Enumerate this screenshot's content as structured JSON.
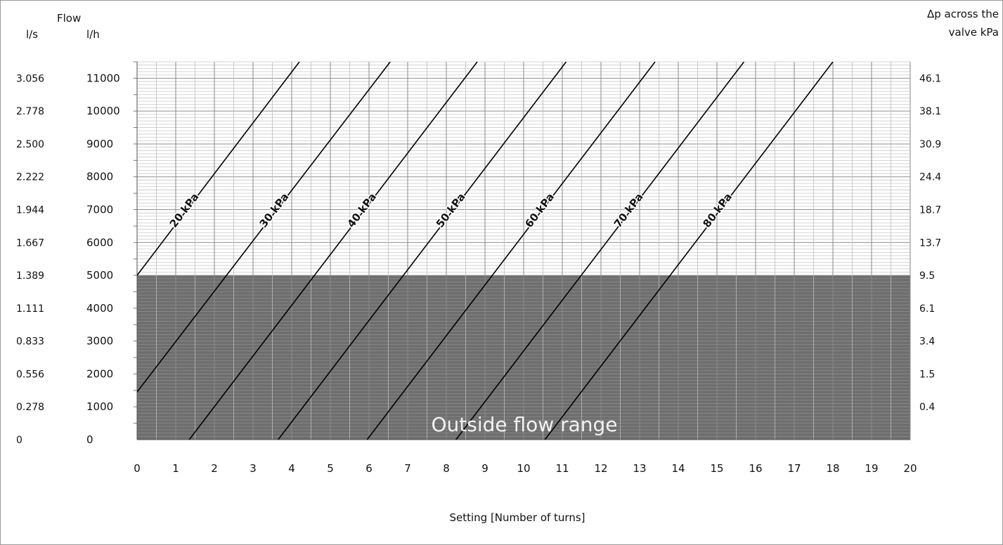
{
  "chart_data": {
    "type": "line",
    "title": "",
    "header_flow": "Flow",
    "header_ls": "l/s",
    "header_lh": "l/h",
    "header_right": [
      "Δp across the",
      "valve kPa"
    ],
    "xlabel": "Setting [Number of turns]",
    "xlim": [
      0,
      20
    ],
    "ylim": [
      0,
      11500
    ],
    "x_ticks": [
      "0",
      "1",
      "2",
      "3",
      "4",
      "5",
      "6",
      "7",
      "8",
      "9",
      "10",
      "11",
      "12",
      "13",
      "14",
      "15",
      "16",
      "17",
      "18",
      "19",
      "20"
    ],
    "y_ticks_lh": [
      "0",
      "1000",
      "2000",
      "3000",
      "4000",
      "5000",
      "6000",
      "7000",
      "8000",
      "9000",
      "10000",
      "11000"
    ],
    "y_ticks_ls": [
      "0",
      "0.278",
      "0.556",
      "0.833",
      "1.111",
      "1.389",
      "1.667",
      "1.944",
      "2.222",
      "2.500",
      "2.778",
      "3.056"
    ],
    "y_ticks_kpa": [
      "",
      "0.4",
      "1.5",
      "3.4",
      "6.1",
      "9.5",
      "13.7",
      "18.7",
      "24.4",
      "30.9",
      "38.1",
      "46.1"
    ],
    "shaded_region": {
      "label": "Outside flow range",
      "y_max": 5000
    },
    "series": [
      {
        "name": "20 kPa",
        "points": [
          [
            0,
            5000
          ],
          [
            4.2,
            11500
          ]
        ]
      },
      {
        "name": "30 kPa",
        "points": [
          [
            0,
            1450
          ],
          [
            6.55,
            11500
          ]
        ]
      },
      {
        "name": "40 kPa",
        "points": [
          [
            1.35,
            0
          ],
          [
            8.8,
            11500
          ]
        ]
      },
      {
        "name": "50 kPa",
        "points": [
          [
            3.65,
            0
          ],
          [
            11.1,
            11500
          ]
        ]
      },
      {
        "name": "60 kPa",
        "points": [
          [
            5.95,
            0
          ],
          [
            13.4,
            11500
          ]
        ]
      },
      {
        "name": "70 kPa",
        "points": [
          [
            8.25,
            0
          ],
          [
            15.7,
            11500
          ]
        ]
      },
      {
        "name": "80 kPa",
        "points": [
          [
            10.55,
            0
          ],
          [
            18.0,
            11500
          ]
        ]
      }
    ],
    "series_label_anchor_y": 7000,
    "grid": true,
    "colors": {
      "line": "#000000",
      "grid": "#9a9a9a",
      "shade": "#6e6e6e",
      "shade_label": "#f2f2f2"
    }
  }
}
